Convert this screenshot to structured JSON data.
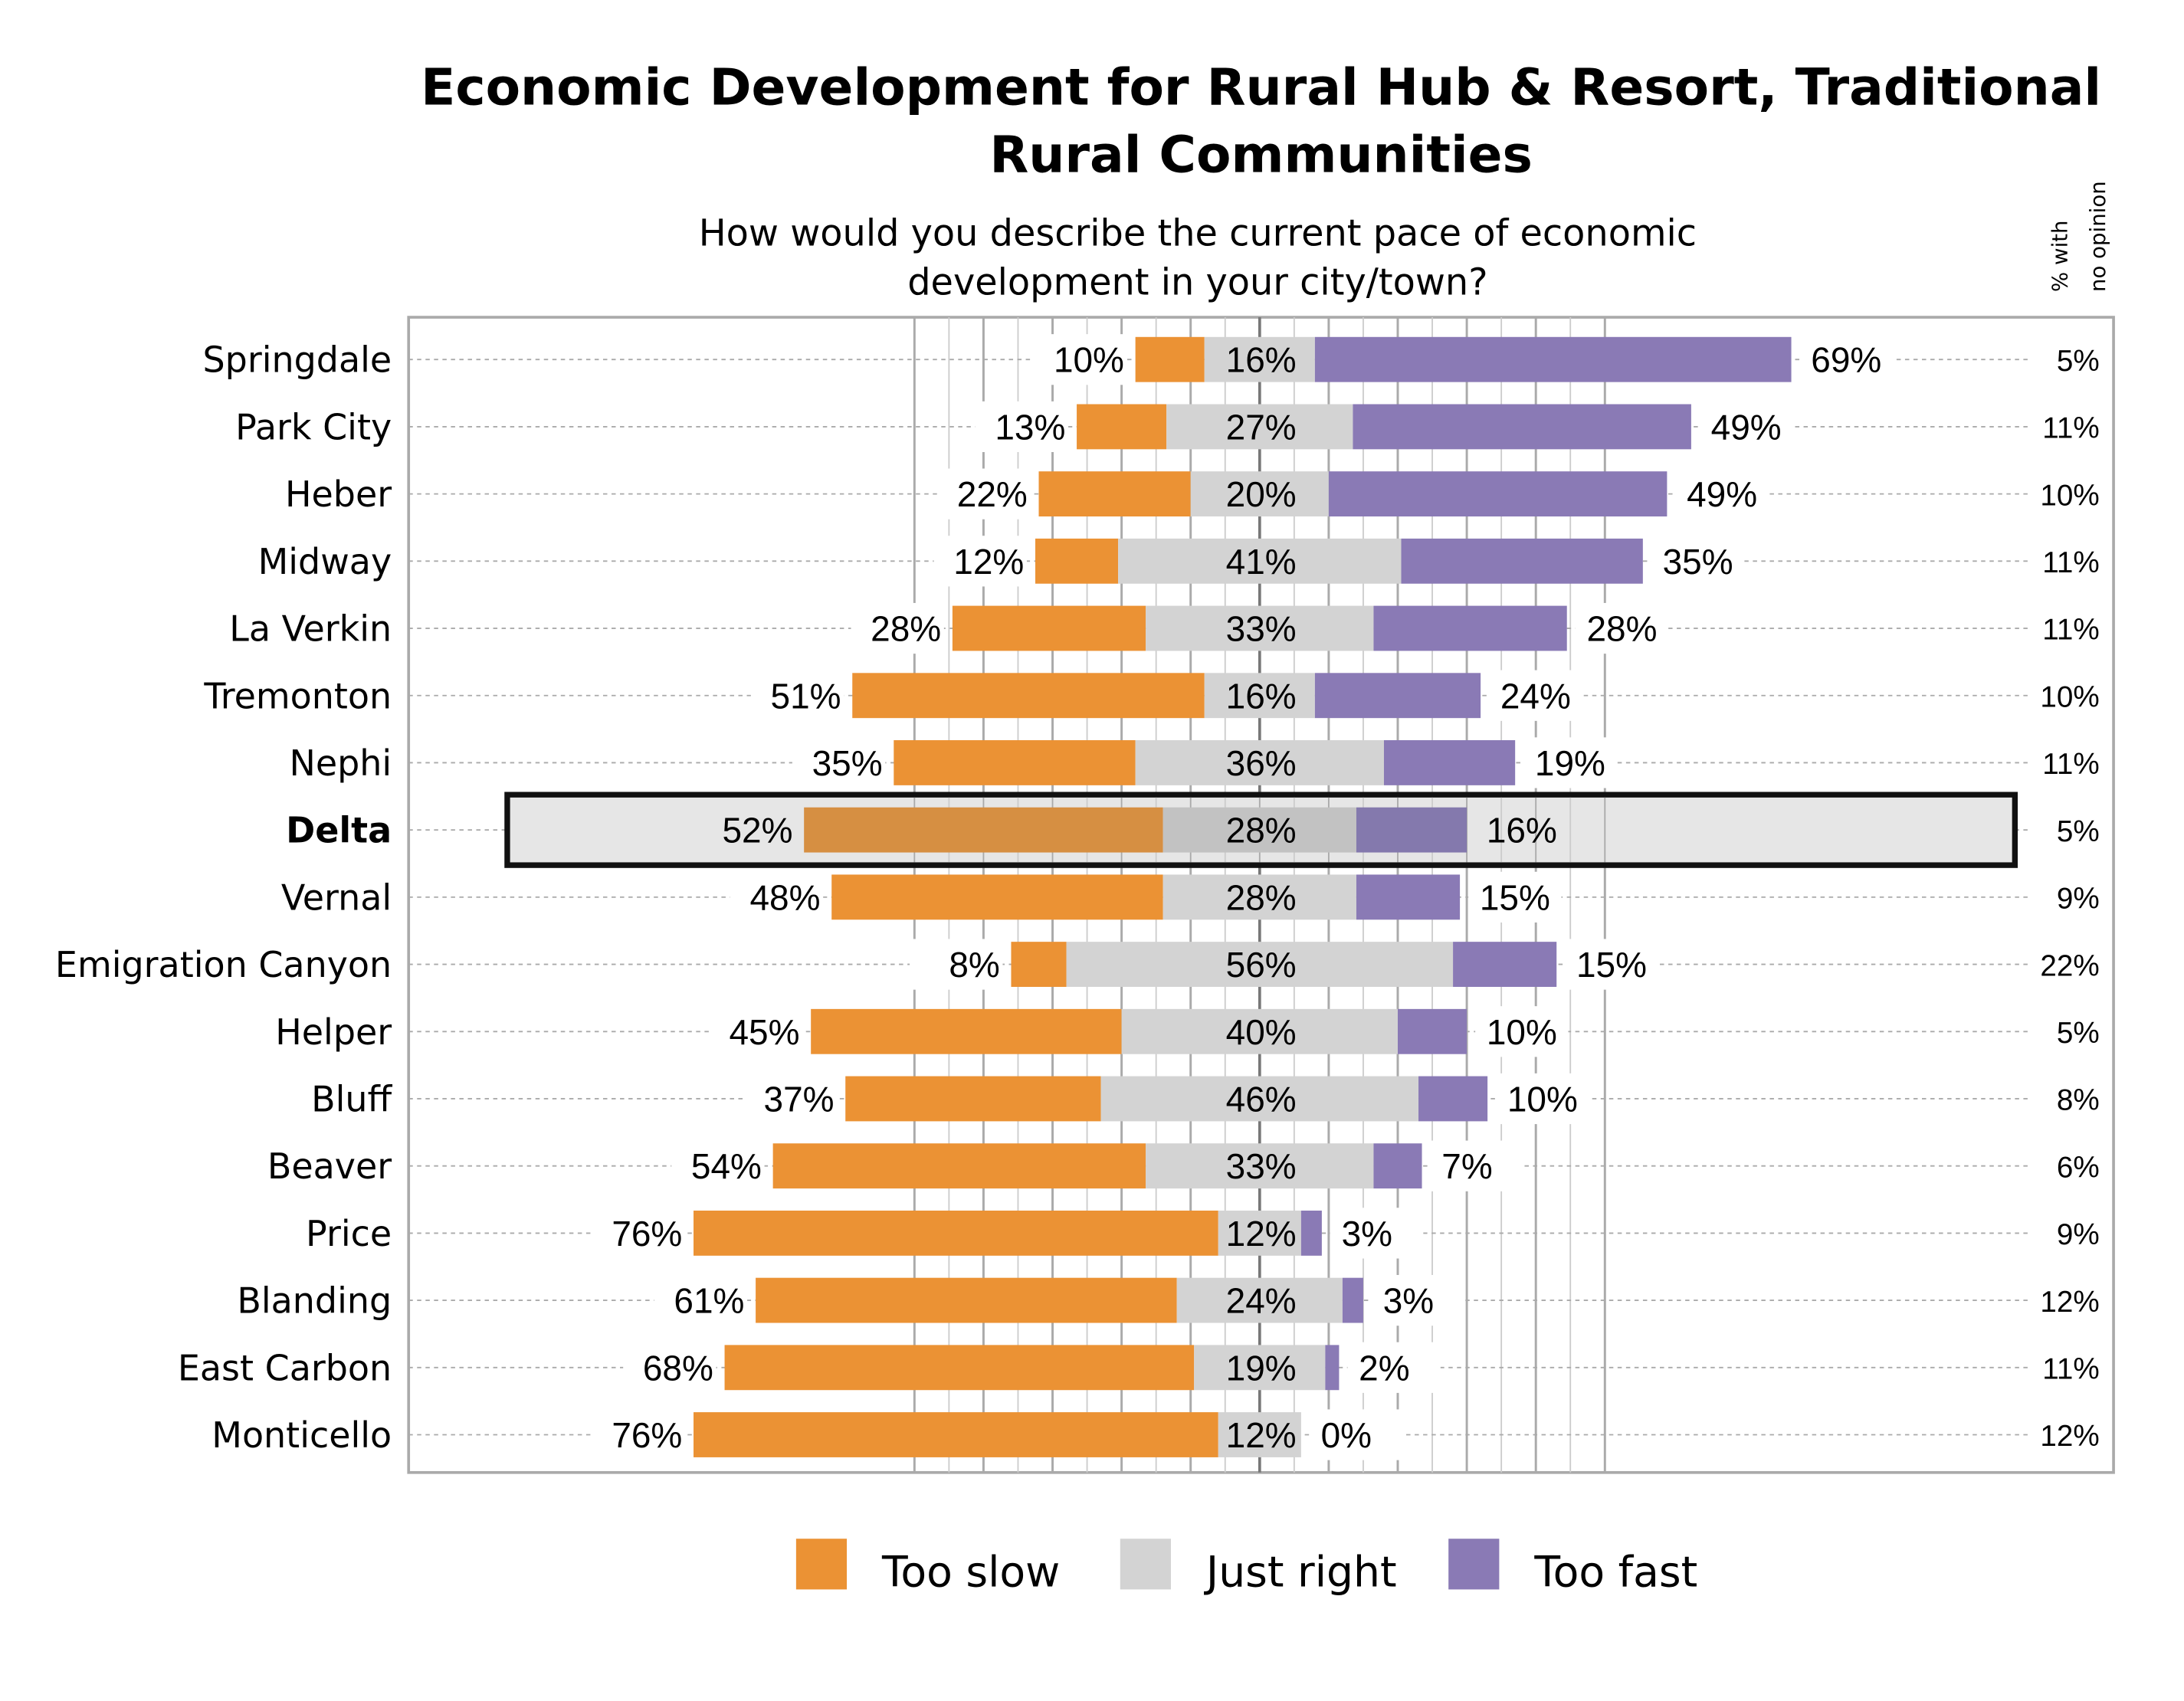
{
  "chart_data": {
    "type": "bar",
    "orientation": "horizontal",
    "stacked": "diverging",
    "title": "Economic Development for Rural Hub & Resort, Traditional Rural Communities",
    "title_lines": [
      "Economic Development for Rural Hub & Resort, Traditional",
      "Rural Communities"
    ],
    "subtitle_lines": [
      "How would you describe the current pace of economic",
      "development in your city/town?"
    ],
    "side_header_lines": [
      "% with",
      "no opinion"
    ],
    "highlighted_category": "Delta",
    "categories": [
      "Springdale",
      "Park City",
      "Heber",
      "Midway",
      "La Verkin",
      "Tremonton",
      "Nephi",
      "Delta",
      "Vernal",
      "Emigration Canyon",
      "Helper",
      "Bluff",
      "Beaver",
      "Price",
      "Blanding",
      "East Carbon",
      "Monticello"
    ],
    "series": [
      {
        "name": "Too slow",
        "color": "#EB9234",
        "values": [
          10,
          13,
          22,
          12,
          28,
          51,
          35,
          52,
          48,
          8,
          45,
          37,
          54,
          76,
          61,
          68,
          76
        ]
      },
      {
        "name": "Just right",
        "color": "#D3D3D3",
        "values": [
          16,
          27,
          20,
          41,
          33,
          16,
          36,
          28,
          28,
          56,
          40,
          46,
          33,
          12,
          24,
          19,
          12
        ]
      },
      {
        "name": "Too fast",
        "color": "#8A7AB5",
        "values": [
          69,
          49,
          49,
          35,
          28,
          24,
          19,
          16,
          15,
          15,
          10,
          10,
          7,
          3,
          3,
          2,
          0
        ]
      }
    ],
    "no_opinion": [
      5,
      11,
      10,
      11,
      11,
      10,
      11,
      5,
      9,
      22,
      5,
      8,
      6,
      9,
      12,
      11,
      12
    ],
    "value_suffix": "%",
    "legend": "bottom",
    "grid": true
  }
}
